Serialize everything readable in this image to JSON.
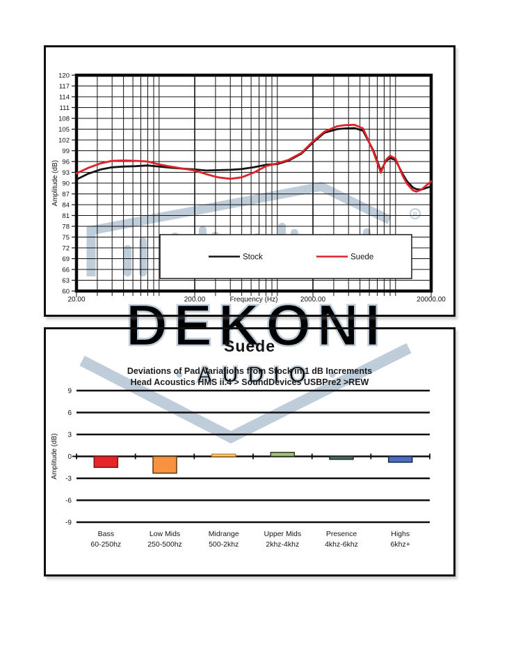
{
  "watermark": {
    "brand": "DEKONI",
    "sub": "AUDIO",
    "reg": "®",
    "color": "#bfccda"
  },
  "chart_data": [
    {
      "type": "line",
      "title": "",
      "xlabel": "Frequency (Hz)",
      "ylabel": "Amplitude (dB)",
      "x_scale": "log",
      "xlim": [
        20,
        20000
      ],
      "ylim": [
        60,
        120
      ],
      "y_tick_step": 3,
      "grid": "on",
      "legend_position": "inside-bottom",
      "x_ticks": [
        {
          "f": 20,
          "label": "20.00"
        },
        {
          "f": 200,
          "label": "200.00"
        },
        {
          "f": 2000,
          "label": "2000.00"
        },
        {
          "f": 20000,
          "label": "20000.00"
        }
      ],
      "frequencies": [
        20,
        25,
        32,
        40,
        50,
        63,
        80,
        100,
        125,
        160,
        200,
        250,
        315,
        400,
        500,
        630,
        800,
        1000,
        1250,
        1600,
        2000,
        2500,
        3200,
        3700,
        4500,
        5300,
        6500,
        7500,
        8300,
        9000,
        10000,
        11500,
        12500,
        14000,
        15000,
        16500,
        18000,
        20000
      ],
      "series": [
        {
          "name": "Stock",
          "color": "#141414",
          "y": [
            91.0,
            92.6,
            93.8,
            94.4,
            94.6,
            94.7,
            94.9,
            94.6,
            94.3,
            94.0,
            93.8,
            93.5,
            93.6,
            93.7,
            93.9,
            94.4,
            95.1,
            95.3,
            96.3,
            98.2,
            101.3,
            104.0,
            105.0,
            105.2,
            105.3,
            104.6,
            99.0,
            93.4,
            96.2,
            97.0,
            96.4,
            92.5,
            90.5,
            88.8,
            88.3,
            88.2,
            88.6,
            89.1
          ]
        },
        {
          "name": "Suede",
          "color": "#e02128",
          "y": [
            92.7,
            94.2,
            95.5,
            96.2,
            96.3,
            96.2,
            96.0,
            95.2,
            94.6,
            94.0,
            93.5,
            92.5,
            91.6,
            91.2,
            91.6,
            92.9,
            94.7,
            95.5,
            96.5,
            98.4,
            101.6,
            104.3,
            105.8,
            106.1,
            106.2,
            105.2,
            98.7,
            92.9,
            96.5,
            97.6,
            96.8,
            92.0,
            89.8,
            88.0,
            87.6,
            88.2,
            89.2,
            90.5
          ]
        }
      ]
    },
    {
      "type": "bar",
      "title": "Suede",
      "subtitle_line1": "Deviations of Pad Variations from Stock in 1 dB Increments",
      "subtitle_line2": "Head Acoustics HMS ii.4 > SoundDevices USBPre2 >REW",
      "ylabel": "Amplitude (dB)",
      "ylim": [
        -9,
        9
      ],
      "y_tick_step": 3,
      "grid": "on",
      "categories": [
        {
          "line1": "Bass",
          "line2": "60-250hz"
        },
        {
          "line1": "Low Mids",
          "line2": "250-500hz"
        },
        {
          "line1": "Midrange",
          "line2": "500-2khz"
        },
        {
          "line1": "Upper Mids",
          "line2": "2khz-4khz"
        },
        {
          "line1": "Presence",
          "line2": "4khz-6khz"
        },
        {
          "line1": "Highs",
          "line2": "6khz+"
        }
      ],
      "values": [
        -1.5,
        -2.3,
        0.3,
        0.55,
        -0.4,
        -0.8
      ],
      "bar_colors": [
        "#e52528",
        "#f69240",
        "#f3dca4",
        "#a2c383",
        "#507065",
        "#4a70bd"
      ],
      "bar_borders": [
        "#7e1416",
        "#5a3a10",
        "#c8862b",
        "#2f3b1f",
        "#1c2a24",
        "#17264e"
      ]
    }
  ]
}
